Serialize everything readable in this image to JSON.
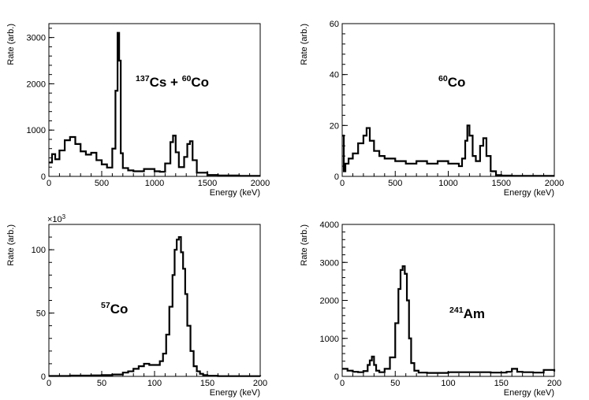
{
  "chart_data": [
    {
      "type": "line",
      "xlabel": "Energy (keV)",
      "ylabel": "Rate (arb.)",
      "xlim": [
        0,
        2000
      ],
      "ylim": [
        0,
        3300
      ],
      "x_ticks": [
        "0",
        "500",
        "1000",
        "1500",
        "2000"
      ],
      "y_ticks": [
        "0",
        "1000",
        "2000",
        "3000"
      ],
      "y_multiplier": "",
      "annotation": {
        "sup1": "137",
        "text1": "Cs + ",
        "sup2": "60",
        "text2": "Co"
      },
      "series": [
        {
          "x": [
            0,
            30,
            60,
            100,
            150,
            200,
            250,
            300,
            350,
            400,
            450,
            500,
            550,
            600,
            630,
            650,
            665,
            680,
            700,
            750,
            800,
            900,
            1000,
            1050,
            1100,
            1150,
            1175,
            1200,
            1230,
            1280,
            1310,
            1335,
            1360,
            1400,
            1500,
            1600,
            1800,
            2000
          ],
          "y": [
            300,
            480,
            370,
            560,
            780,
            850,
            700,
            540,
            470,
            510,
            350,
            260,
            190,
            600,
            1850,
            3100,
            2500,
            500,
            180,
            130,
            110,
            160,
            110,
            100,
            280,
            740,
            880,
            520,
            200,
            420,
            700,
            760,
            350,
            80,
            30,
            20,
            10,
            10
          ]
        }
      ]
    },
    {
      "type": "line",
      "xlabel": "Energy (keV)",
      "ylabel": "Rate (arb.)",
      "xlim": [
        0,
        2000
      ],
      "ylim": [
        0,
        60
      ],
      "x_ticks": [
        "0",
        "500",
        "1000",
        "1500",
        "2000"
      ],
      "y_ticks": [
        "0",
        "20",
        "40",
        "60"
      ],
      "y_multiplier": "",
      "annotation": {
        "sup1": "60",
        "text1": "Co",
        "sup2": "",
        "text2": ""
      },
      "series": [
        {
          "x": [
            0,
            15,
            30,
            60,
            100,
            150,
            200,
            230,
            260,
            300,
            350,
            400,
            500,
            600,
            700,
            800,
            900,
            1000,
            1050,
            1100,
            1130,
            1160,
            1180,
            1200,
            1230,
            1260,
            1300,
            1330,
            1360,
            1400,
            1450,
            1500,
            1600,
            2000
          ],
          "y": [
            16,
            2,
            5,
            7,
            9,
            13,
            16,
            19,
            14,
            10,
            8,
            7,
            6,
            5,
            6,
            5,
            6,
            5,
            5,
            4,
            7,
            14,
            20,
            16,
            8,
            6,
            12,
            15,
            8,
            2,
            0.5,
            0.3,
            0.2,
            0.2
          ]
        }
      ]
    },
    {
      "type": "line",
      "xlabel": "Energy (keV)",
      "ylabel": "Rate (arb.)",
      "xlim": [
        0,
        200
      ],
      "ylim": [
        0,
        120
      ],
      "x_ticks": [
        "0",
        "50",
        "100",
        "150",
        "200"
      ],
      "y_ticks": [
        "0",
        "50",
        "100"
      ],
      "y_multiplier": "×10",
      "y_multiplier_exp": "3",
      "annotation": {
        "sup1": "57",
        "text1": "Co",
        "sup2": "",
        "text2": ""
      },
      "series": [
        {
          "x": [
            0,
            20,
            40,
            50,
            60,
            70,
            75,
            80,
            85,
            90,
            95,
            100,
            105,
            108,
            111,
            114,
            117,
            119,
            121,
            123,
            125,
            127,
            129,
            131,
            134,
            137,
            140,
            143,
            146,
            150,
            160,
            200
          ],
          "y": [
            0.3,
            0.6,
            0.8,
            1,
            1.5,
            3,
            4,
            6,
            8,
            10,
            9,
            9,
            12,
            18,
            33,
            55,
            80,
            100,
            108,
            110,
            98,
            85,
            65,
            40,
            20,
            8,
            4,
            2,
            1,
            0.5,
            0.2,
            0.1
          ]
        }
      ]
    },
    {
      "type": "line",
      "xlabel": "Energy (keV)",
      "ylabel": "Rate (arb.)",
      "xlim": [
        0,
        200
      ],
      "ylim": [
        0,
        4000
      ],
      "x_ticks": [
        "0",
        "50",
        "100",
        "150",
        "200"
      ],
      "y_ticks": [
        "0",
        "1000",
        "2000",
        "3000",
        "4000"
      ],
      "y_multiplier": "",
      "annotation": {
        "sup1": "241",
        "text1": "Am",
        "sup2": "",
        "text2": ""
      },
      "series": [
        {
          "x": [
            0,
            5,
            10,
            15,
            20,
            24,
            26,
            28,
            30,
            32,
            35,
            40,
            45,
            50,
            53,
            55,
            57,
            59,
            61,
            63,
            65,
            68,
            72,
            80,
            100,
            120,
            140,
            155,
            160,
            165,
            170,
            180,
            190,
            200
          ],
          "y": [
            200,
            150,
            120,
            110,
            140,
            300,
            420,
            520,
            300,
            150,
            110,
            200,
            500,
            1400,
            2300,
            2800,
            2900,
            2700,
            2000,
            1000,
            350,
            150,
            100,
            90,
            110,
            110,
            100,
            120,
            200,
            120,
            110,
            100,
            170,
            130
          ]
        }
      ]
    }
  ]
}
